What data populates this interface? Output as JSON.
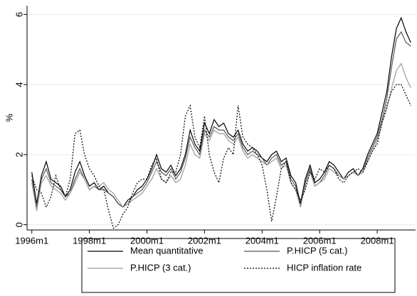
{
  "chart_data": {
    "type": "line",
    "y_label": "%",
    "x": [
      432,
      434,
      436,
      438,
      440,
      442,
      444,
      446,
      448,
      450,
      452,
      454,
      456,
      458,
      460,
      462,
      464,
      466,
      468,
      470,
      472,
      474,
      476,
      478,
      480,
      482,
      484,
      486,
      488,
      490,
      492,
      494,
      496,
      498,
      500,
      502,
      504,
      506,
      508,
      510,
      512,
      514,
      516,
      518,
      520,
      522,
      524,
      526,
      528,
      530,
      532,
      534,
      536,
      538,
      540,
      542,
      544,
      546,
      548,
      550,
      552,
      554,
      556,
      558,
      560,
      562,
      564,
      566,
      568,
      570,
      572,
      574,
      576,
      578,
      580,
      582,
      584,
      586,
      588,
      590
    ],
    "xlim": [
      430,
      592
    ],
    "xticks": [
      {
        "value": 432,
        "label": "1996m1"
      },
      {
        "value": 456,
        "label": "1998m1"
      },
      {
        "value": 480,
        "label": "2000m1"
      },
      {
        "value": 504,
        "label": "2002m1"
      },
      {
        "value": 528,
        "label": "2004m1"
      },
      {
        "value": 552,
        "label": "2006m1"
      },
      {
        "value": 576,
        "label": "2008m1"
      }
    ],
    "ylim": [
      -0.15,
      6.25
    ],
    "yticks": [
      0,
      2,
      4,
      6
    ],
    "grid": true,
    "series": [
      {
        "name": "Mean quantitative",
        "color": "#000000",
        "dash": "",
        "values": [
          1.5,
          0.6,
          1.4,
          1.8,
          1.3,
          1.2,
          1.1,
          0.8,
          1.0,
          1.5,
          1.8,
          1.4,
          1.1,
          1.2,
          1.0,
          1.1,
          0.9,
          0.8,
          0.6,
          0.5,
          0.7,
          0.8,
          1.0,
          1.1,
          1.3,
          1.6,
          2.0,
          1.6,
          1.5,
          1.7,
          1.4,
          1.6,
          2.0,
          2.7,
          2.3,
          2.1,
          2.9,
          2.6,
          3.0,
          2.8,
          2.9,
          2.6,
          2.5,
          2.7,
          2.3,
          2.1,
          2.2,
          2.1,
          1.9,
          1.8,
          2.0,
          2.1,
          1.8,
          1.9,
          1.4,
          1.2,
          0.6,
          1.3,
          1.7,
          1.2,
          1.3,
          1.5,
          1.8,
          1.7,
          1.5,
          1.3,
          1.5,
          1.6,
          1.4,
          1.6,
          2.0,
          2.3,
          2.6,
          3.2,
          3.8,
          4.8,
          5.6,
          5.9,
          5.5,
          5.2
        ]
      },
      {
        "name": "P.HICP (5 cat.)",
        "color": "#555555",
        "dash": "",
        "values": [
          1.3,
          0.5,
          1.3,
          1.6,
          1.2,
          1.1,
          1.0,
          0.8,
          0.9,
          1.3,
          1.6,
          1.3,
          1.0,
          1.1,
          1.0,
          1.0,
          0.9,
          0.8,
          0.6,
          0.5,
          0.6,
          0.8,
          0.9,
          1.0,
          1.2,
          1.5,
          1.8,
          1.5,
          1.4,
          1.6,
          1.3,
          1.5,
          1.9,
          2.5,
          2.2,
          2.0,
          2.7,
          2.5,
          2.8,
          2.7,
          2.7,
          2.5,
          2.4,
          2.6,
          2.2,
          2.0,
          2.1,
          2.0,
          1.9,
          1.7,
          1.9,
          2.0,
          1.7,
          1.8,
          1.3,
          1.1,
          0.5,
          1.2,
          1.6,
          1.1,
          1.2,
          1.4,
          1.7,
          1.6,
          1.4,
          1.3,
          1.4,
          1.5,
          1.4,
          1.5,
          1.9,
          2.2,
          2.5,
          3.0,
          3.6,
          4.5,
          5.3,
          5.5,
          5.2,
          5.1
        ]
      },
      {
        "name": "P.HICP (3 cat.)",
        "color": "#9a9a9a",
        "dash": "",
        "values": [
          1.2,
          0.4,
          1.2,
          1.4,
          1.1,
          1.0,
          0.9,
          0.7,
          0.9,
          1.2,
          1.5,
          1.3,
          1.0,
          1.1,
          1.1,
          1.2,
          1.0,
          0.9,
          0.7,
          0.5,
          0.6,
          0.7,
          0.8,
          0.9,
          1.1,
          1.3,
          1.6,
          1.3,
          1.2,
          1.4,
          1.2,
          1.3,
          1.7,
          2.3,
          2.0,
          1.9,
          2.6,
          2.4,
          2.7,
          2.6,
          2.6,
          2.4,
          2.3,
          2.5,
          2.1,
          1.9,
          2.0,
          1.9,
          1.8,
          1.7,
          1.8,
          1.9,
          1.6,
          1.7,
          1.2,
          1.0,
          0.5,
          1.1,
          1.5,
          1.1,
          1.2,
          1.3,
          1.6,
          1.5,
          1.4,
          1.3,
          1.4,
          1.5,
          1.4,
          1.5,
          1.8,
          2.1,
          2.4,
          2.9,
          3.3,
          3.9,
          4.4,
          4.6,
          4.2,
          3.9
        ]
      },
      {
        "name": "HICP inflation rate",
        "color": "#000000",
        "dash": "2 2",
        "values": [
          1.4,
          1.0,
          0.9,
          0.5,
          0.8,
          1.4,
          1.0,
          0.8,
          1.3,
          2.6,
          2.7,
          2.0,
          1.6,
          1.4,
          1.1,
          1.0,
          0.4,
          -0.1,
          0.0,
          0.3,
          0.5,
          0.9,
          1.2,
          1.3,
          1.3,
          1.7,
          1.9,
          1.3,
          1.2,
          1.5,
          1.5,
          2.0,
          3.1,
          3.4,
          2.5,
          2.2,
          3.1,
          2.0,
          1.5,
          1.2,
          1.9,
          2.2,
          2.0,
          3.4,
          2.5,
          2.3,
          2.2,
          2.0,
          1.7,
          1.0,
          0.1,
          0.8,
          1.6,
          1.8,
          1.2,
          1.0,
          0.7,
          1.0,
          1.5,
          1.3,
          1.6,
          1.5,
          1.7,
          1.6,
          1.3,
          1.2,
          1.4,
          1.5,
          1.6,
          1.5,
          1.8,
          2.1,
          2.3,
          2.9,
          3.4,
          3.8,
          4.0,
          4.0,
          3.7,
          3.4
        ]
      }
    ]
  }
}
